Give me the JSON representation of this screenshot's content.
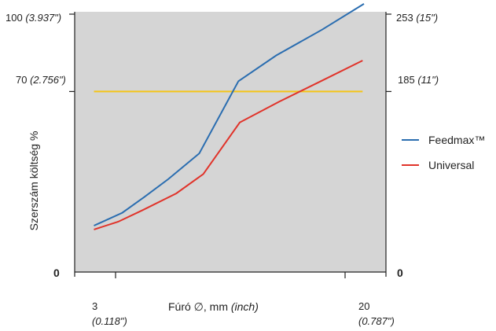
{
  "chart_data": {
    "type": "line",
    "title": "",
    "xlabel": {
      "text": "Fúró ∅, mm ",
      "unit": "(inch)"
    },
    "ylabel": "Szerszám költség %",
    "xlim": [
      3,
      20
    ],
    "ylim": [
      0,
      100
    ],
    "grid": false,
    "legend_position": "right",
    "x_ticks": [
      {
        "value": 3,
        "main": "3",
        "sub": "(0.118\")"
      },
      {
        "value": 20,
        "main": "20",
        "sub": "(0.787\")"
      }
    ],
    "y_ticks_left": [
      {
        "value": 100,
        "main": "100 ",
        "sub": "(3.937\")"
      },
      {
        "value": 70,
        "main": "70 ",
        "sub": "(2.756\")"
      },
      {
        "value": 0,
        "main": "0",
        "sub": ""
      }
    ],
    "y_ticks_right": [
      {
        "value": 100,
        "main": "253 ",
        "sub": "(15\")"
      },
      {
        "value": 70,
        "main": "185 ",
        "sub": "(11\")"
      },
      {
        "value": 0,
        "main": "0",
        "sub": ""
      }
    ],
    "reference_line": {
      "y": 70,
      "x_start": 1.4,
      "x_end": 21.3,
      "color": "#f5c518"
    },
    "series": [
      {
        "name": "Feedmax™",
        "color": "#2a6db0",
        "x": [
          1.4,
          3.5,
          5.1,
          6.9,
          9.2,
          12.1,
          14.9,
          18.3,
          21.4
        ],
        "y": [
          18,
          23,
          29,
          36,
          46,
          74,
          84,
          94,
          104
        ]
      },
      {
        "name": "Universal",
        "color": "#e0332a",
        "x": [
          1.4,
          3.2,
          5.0,
          7.5,
          9.5,
          12.2,
          15.1,
          18.2,
          21.3
        ],
        "y": [
          16.5,
          19.5,
          24,
          30.5,
          38,
          58,
          66,
          74,
          82
        ]
      }
    ]
  }
}
